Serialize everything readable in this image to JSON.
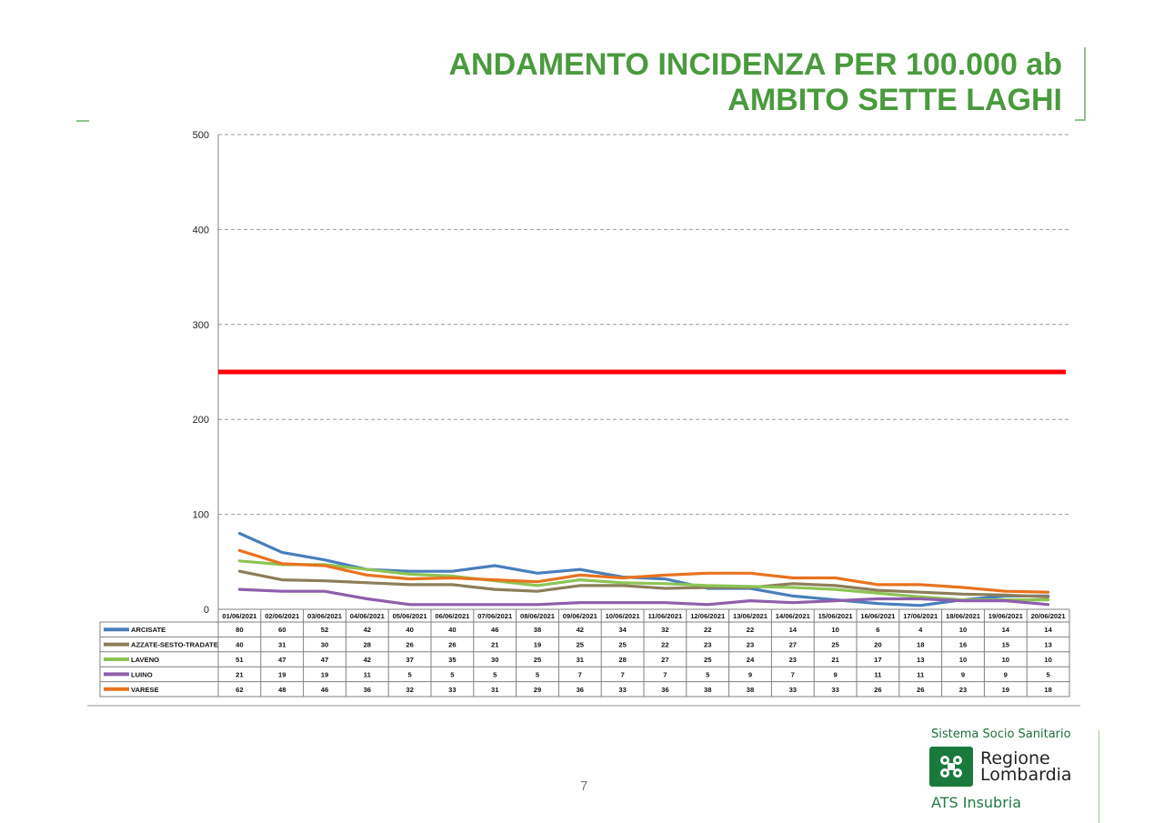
{
  "title": {
    "line1": "ANDAMENTO INCIDENZA PER 100.000 ab",
    "line2": "AMBITO SETTE LAGHI"
  },
  "page_number": "7",
  "logo": {
    "system": "Sistema Socio Sanitario",
    "region_line1": "Regione",
    "region_line2": "Lombardia",
    "agency": "ATS Insubria"
  },
  "colors": {
    "title": "#4a9a3e",
    "threshold": "#ff0000",
    "ARCISATE": "#4a7ebb",
    "AZZATE-SESTO-TRADATE": "#8c7e5a",
    "LAVENO": "#8dc454",
    "LUINO": "#8e5fab",
    "VARESE": "#e8731f"
  },
  "chart_data": {
    "type": "line",
    "title": "",
    "xlabel": "",
    "ylabel": "",
    "ylim": [
      0,
      500
    ],
    "yticks": [
      0,
      100,
      200,
      300,
      400,
      500
    ],
    "grid": true,
    "legend": "data-table",
    "threshold": 250,
    "categories": [
      "01/06/2021",
      "02/06/2021",
      "03/06/2021",
      "04/06/2021",
      "05/06/2021",
      "06/06/2021",
      "07/06/2021",
      "08/06/2021",
      "09/06/2021",
      "10/06/2021",
      "11/06/2021",
      "12/06/2021",
      "13/06/2021",
      "14/06/2021",
      "15/06/2021",
      "16/06/2021",
      "17/06/2021",
      "18/06/2021",
      "19/06/2021",
      "20/06/2021"
    ],
    "series": [
      {
        "name": "ARCISATE",
        "values": [
          80,
          60,
          52,
          42,
          40,
          40,
          46,
          38,
          42,
          34,
          32,
          22,
          22,
          14,
          10,
          6,
          4,
          10,
          14,
          14
        ]
      },
      {
        "name": "AZZATE-SESTO-TRADATE",
        "values": [
          40,
          31,
          30,
          28,
          26,
          26,
          21,
          19,
          25,
          25,
          22,
          23,
          23,
          27,
          25,
          20,
          18,
          16,
          15,
          13
        ]
      },
      {
        "name": "LAVENO",
        "values": [
          51,
          47,
          47,
          42,
          37,
          35,
          30,
          25,
          31,
          28,
          27,
          25,
          24,
          23,
          21,
          17,
          13,
          10,
          10,
          10
        ]
      },
      {
        "name": "LUINO",
        "values": [
          21,
          19,
          19,
          11,
          5,
          5,
          5,
          5,
          7,
          7,
          7,
          5,
          9,
          7,
          9,
          11,
          11,
          9,
          9,
          5
        ]
      },
      {
        "name": "VARESE",
        "values": [
          62,
          48,
          46,
          36,
          32,
          33,
          31,
          29,
          36,
          33,
          36,
          38,
          38,
          33,
          33,
          26,
          26,
          23,
          19,
          18
        ]
      }
    ]
  }
}
